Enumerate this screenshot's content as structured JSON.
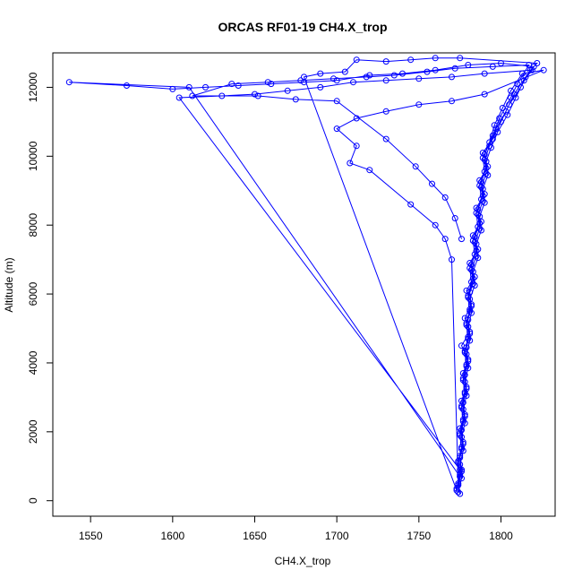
{
  "chart_data": {
    "type": "scatter",
    "title": "ORCAS RF01-19 CH4.X_trop",
    "xlabel": "CH4.X_trop",
    "ylabel": "Altitude (m)",
    "xlim": [
      1527,
      1833
    ],
    "ylim": [
      -450,
      13000
    ],
    "xticks": [
      1550,
      1600,
      1650,
      1700,
      1750,
      1800
    ],
    "yticks": [
      0,
      2000,
      4000,
      6000,
      8000,
      10000,
      12000
    ],
    "grid": false,
    "marker": "open-circle",
    "connected": true,
    "series_color": "#0000ff",
    "series": [
      {
        "points": [
          [
            1775,
            200
          ],
          [
            1774,
            500
          ],
          [
            1776,
            900
          ],
          [
            1775,
            1300
          ],
          [
            1777,
            1700
          ],
          [
            1775,
            2100
          ],
          [
            1778,
            2500
          ],
          [
            1776,
            2900
          ],
          [
            1779,
            3300
          ],
          [
            1777,
            3700
          ],
          [
            1780,
            4100
          ],
          [
            1776,
            4500
          ],
          [
            1781,
            4900
          ],
          [
            1778,
            5300
          ],
          [
            1782,
            5700
          ],
          [
            1779,
            6100
          ],
          [
            1784,
            6500
          ],
          [
            1781,
            6900
          ],
          [
            1786,
            7300
          ],
          [
            1783,
            7700
          ],
          [
            1788,
            8100
          ],
          [
            1785,
            8500
          ],
          [
            1790,
            8900
          ],
          [
            1787,
            9300
          ],
          [
            1792,
            9700
          ],
          [
            1789,
            10100
          ],
          [
            1795,
            10500
          ],
          [
            1800,
            11000
          ],
          [
            1805,
            11500
          ],
          [
            1812,
            12000
          ],
          [
            1818,
            12500
          ],
          [
            1822,
            12700
          ],
          [
            1775,
            12850
          ],
          [
            1760,
            12850
          ],
          [
            1745,
            12800
          ],
          [
            1730,
            12750
          ],
          [
            1712,
            12800
          ],
          [
            1705,
            12450
          ],
          [
            1690,
            12400
          ],
          [
            1680,
            12300
          ],
          [
            1773,
            300
          ],
          [
            1775,
            700
          ],
          [
            1774,
            1100
          ],
          [
            1776,
            1500
          ],
          [
            1775,
            1900
          ],
          [
            1777,
            2300
          ],
          [
            1776,
            2700
          ],
          [
            1778,
            3100
          ],
          [
            1777,
            3500
          ],
          [
            1779,
            3900
          ],
          [
            1778,
            4300
          ],
          [
            1780,
            4700
          ],
          [
            1779,
            5100
          ],
          [
            1781,
            5500
          ],
          [
            1780,
            5900
          ],
          [
            1783,
            6300
          ],
          [
            1782,
            6700
          ],
          [
            1785,
            7100
          ],
          [
            1784,
            7500
          ],
          [
            1787,
            7900
          ],
          [
            1786,
            8300
          ],
          [
            1789,
            8700
          ],
          [
            1788,
            9100
          ],
          [
            1791,
            9500
          ],
          [
            1790,
            9900
          ],
          [
            1793,
            10300
          ],
          [
            1797,
            10800
          ],
          [
            1803,
            11300
          ],
          [
            1808,
            11800
          ],
          [
            1815,
            12300
          ],
          [
            1820,
            12600
          ],
          [
            1800,
            12700
          ],
          [
            1780,
            12650
          ],
          [
            1760,
            12500
          ],
          [
            1740,
            12400
          ],
          [
            1720,
            12350
          ],
          [
            1700,
            12200
          ],
          [
            1680,
            12150
          ],
          [
            1660,
            12100
          ],
          [
            1640,
            12050
          ],
          [
            1620,
            12000
          ],
          [
            1600,
            11950
          ],
          [
            1572,
            12050
          ],
          [
            1537,
            12150
          ],
          [
            1610,
            12000
          ],
          [
            1775,
            700
          ],
          [
            1774,
            250
          ],
          [
            1776,
            650
          ],
          [
            1775,
            1050
          ],
          [
            1777,
            1450
          ],
          [
            1776,
            1850
          ],
          [
            1778,
            2250
          ],
          [
            1777,
            2650
          ],
          [
            1779,
            3050
          ],
          [
            1778,
            3450
          ],
          [
            1780,
            3850
          ],
          [
            1779,
            4250
          ],
          [
            1781,
            4650
          ],
          [
            1780,
            5050
          ],
          [
            1782,
            5450
          ],
          [
            1781,
            5850
          ],
          [
            1784,
            6250
          ],
          [
            1783,
            6650
          ],
          [
            1786,
            7050
          ],
          [
            1785,
            7450
          ],
          [
            1788,
            7850
          ],
          [
            1787,
            8250
          ],
          [
            1790,
            8650
          ],
          [
            1789,
            9050
          ],
          [
            1792,
            9450
          ],
          [
            1791,
            9850
          ],
          [
            1794,
            10250
          ],
          [
            1798,
            10700
          ],
          [
            1804,
            11200
          ],
          [
            1809,
            11700
          ],
          [
            1814,
            12200
          ],
          [
            1819,
            12500
          ],
          [
            1790,
            12400
          ],
          [
            1770,
            12300
          ],
          [
            1750,
            12250
          ],
          [
            1730,
            12200
          ],
          [
            1710,
            12150
          ],
          [
            1690,
            12000
          ],
          [
            1670,
            11900
          ],
          [
            1650,
            11800
          ],
          [
            1630,
            11750
          ],
          [
            1604,
            11700
          ],
          [
            1775,
            900
          ],
          [
            1773,
            350
          ],
          [
            1775,
            750
          ],
          [
            1774,
            1150
          ],
          [
            1776,
            1550
          ],
          [
            1775,
            1950
          ],
          [
            1777,
            2350
          ],
          [
            1776,
            2750
          ],
          [
            1778,
            3150
          ],
          [
            1777,
            3550
          ],
          [
            1779,
            3950
          ],
          [
            1778,
            4350
          ],
          [
            1780,
            4750
          ],
          [
            1779,
            5150
          ],
          [
            1781,
            5550
          ],
          [
            1780,
            5950
          ],
          [
            1782,
            6350
          ],
          [
            1781,
            6750
          ],
          [
            1784,
            7150
          ],
          [
            1783,
            7550
          ],
          [
            1786,
            7950
          ],
          [
            1785,
            8350
          ],
          [
            1788,
            8750
          ],
          [
            1787,
            9150
          ],
          [
            1790,
            9550
          ],
          [
            1789,
            9950
          ],
          [
            1793,
            10400
          ],
          [
            1796,
            10900
          ],
          [
            1801,
            11400
          ],
          [
            1806,
            11900
          ],
          [
            1813,
            12400
          ],
          [
            1826,
            12500
          ],
          [
            1790,
            11800
          ],
          [
            1770,
            11600
          ],
          [
            1750,
            11500
          ],
          [
            1730,
            11300
          ],
          [
            1712,
            11100
          ],
          [
            1700,
            10800
          ],
          [
            1712,
            10300
          ],
          [
            1708,
            9800
          ],
          [
            1720,
            9600
          ],
          [
            1745,
            8600
          ],
          [
            1760,
            8000
          ],
          [
            1766,
            7600
          ],
          [
            1770,
            7000
          ],
          [
            1774,
            450
          ],
          [
            1776,
            850
          ],
          [
            1775,
            1250
          ],
          [
            1777,
            1650
          ],
          [
            1776,
            2050
          ],
          [
            1778,
            2450
          ],
          [
            1777,
            2850
          ],
          [
            1779,
            3250
          ],
          [
            1778,
            3650
          ],
          [
            1780,
            4050
          ],
          [
            1779,
            4450
          ],
          [
            1781,
            4850
          ],
          [
            1780,
            5250
          ],
          [
            1782,
            5650
          ],
          [
            1781,
            6050
          ],
          [
            1783,
            6450
          ],
          [
            1782,
            6850
          ],
          [
            1785,
            7250
          ],
          [
            1784,
            7650
          ],
          [
            1787,
            8050
          ],
          [
            1786,
            8450
          ],
          [
            1789,
            8850
          ],
          [
            1788,
            9250
          ],
          [
            1791,
            9650
          ],
          [
            1790,
            10050
          ],
          [
            1795,
            10600
          ],
          [
            1799,
            11100
          ],
          [
            1806,
            11700
          ],
          [
            1810,
            12100
          ],
          [
            1817,
            12650
          ],
          [
            1795,
            12600
          ],
          [
            1772,
            12550
          ],
          [
            1755,
            12450
          ],
          [
            1735,
            12350
          ],
          [
            1718,
            12300
          ],
          [
            1698,
            12250
          ],
          [
            1678,
            12200
          ],
          [
            1658,
            12150
          ],
          [
            1636,
            12100
          ],
          [
            1612,
            11750
          ],
          [
            1652,
            11750
          ],
          [
            1675,
            11650
          ],
          [
            1700,
            11600
          ],
          [
            1730,
            10500
          ],
          [
            1748,
            9700
          ],
          [
            1758,
            9200
          ],
          [
            1766,
            8800
          ],
          [
            1772,
            8200
          ],
          [
            1776,
            7600
          ]
        ]
      }
    ]
  }
}
